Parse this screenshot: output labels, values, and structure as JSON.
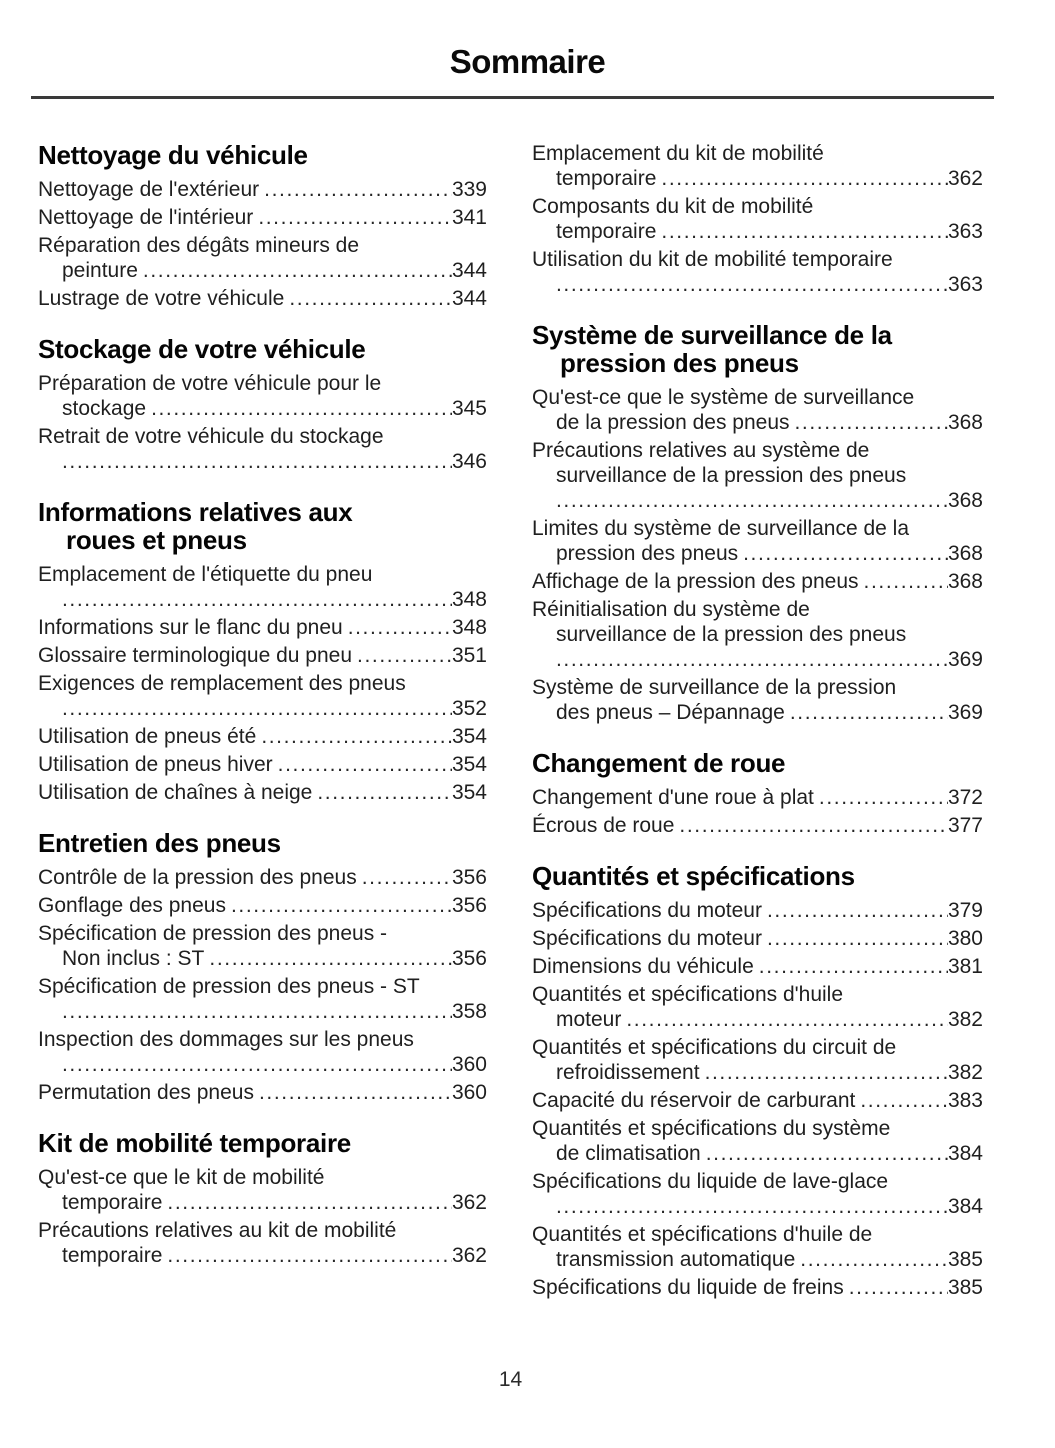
{
  "page": {
    "title": "Sommaire",
    "page_number": "14"
  },
  "toc": {
    "columns": [
      {
        "name": "left",
        "blocks": [
          {
            "heading_lines": [
              "Nettoyage du véhicule"
            ],
            "entries": [
              {
                "lines": [
                  "Nettoyage de l'extérieur"
                ],
                "page": "339"
              },
              {
                "lines": [
                  "Nettoyage de l'intérieur"
                ],
                "page": "341"
              },
              {
                "lines": [
                  "Réparation des dégâts mineurs de",
                  "peinture"
                ],
                "page": "344"
              },
              {
                "lines": [
                  "Lustrage de votre véhicule"
                ],
                "page": "344"
              }
            ]
          },
          {
            "heading_lines": [
              "Stockage de votre véhicule"
            ],
            "entries": [
              {
                "lines": [
                  "Préparation de votre véhicule pour le",
                  "stockage"
                ],
                "page": "345"
              },
              {
                "lines": [
                  "Retrait de votre véhicule du stockage",
                  ""
                ],
                "page": "346"
              }
            ]
          },
          {
            "heading_lines": [
              "Informations relatives aux",
              "roues et pneus"
            ],
            "entries": [
              {
                "lines": [
                  "Emplacement de l'étiquette du pneu",
                  ""
                ],
                "page": "348"
              },
              {
                "lines": [
                  "Informations sur le flanc du pneu"
                ],
                "page": "348"
              },
              {
                "lines": [
                  "Glossaire terminologique du pneu"
                ],
                "page": "351"
              },
              {
                "lines": [
                  "Exigences de remplacement des pneus",
                  ""
                ],
                "page": "352"
              },
              {
                "lines": [
                  "Utilisation de pneus été"
                ],
                "page": "354"
              },
              {
                "lines": [
                  "Utilisation de pneus hiver"
                ],
                "page": "354"
              },
              {
                "lines": [
                  "Utilisation de chaînes à neige"
                ],
                "page": "354"
              }
            ]
          },
          {
            "heading_lines": [
              "Entretien des pneus"
            ],
            "entries": [
              {
                "lines": [
                  "Contrôle de la pression des pneus"
                ],
                "page": "356"
              },
              {
                "lines": [
                  "Gonflage des pneus"
                ],
                "page": "356"
              },
              {
                "lines": [
                  "Spécification de pression des pneus -",
                  "Non inclus : ST"
                ],
                "page": "356"
              },
              {
                "lines": [
                  "Spécification de pression des pneus - ST",
                  ""
                ],
                "page": "358"
              },
              {
                "lines": [
                  "Inspection des dommages sur les pneus",
                  ""
                ],
                "page": "360"
              },
              {
                "lines": [
                  "Permutation des pneus"
                ],
                "page": "360"
              }
            ]
          },
          {
            "heading_lines": [
              "Kit de mobilité temporaire"
            ],
            "entries": [
              {
                "lines": [
                  "Qu'est-ce que le kit de mobilité",
                  "temporaire"
                ],
                "page": "362"
              },
              {
                "lines": [
                  "Précautions relatives au kit de mobilité",
                  "temporaire"
                ],
                "page": "362"
              }
            ]
          }
        ]
      },
      {
        "name": "right",
        "blocks": [
          {
            "heading_lines": [],
            "entries": [
              {
                "lines": [
                  "Emplacement du kit de mobilité",
                  "temporaire"
                ],
                "page": "362"
              },
              {
                "lines": [
                  "Composants du kit de mobilité",
                  "temporaire"
                ],
                "page": "363"
              },
              {
                "lines": [
                  "Utilisation du kit de mobilité temporaire",
                  ""
                ],
                "page": "363"
              }
            ]
          },
          {
            "heading_lines": [
              "Système de surveillance de la",
              "pression des pneus"
            ],
            "entries": [
              {
                "lines": [
                  "Qu'est-ce que le système de surveillance",
                  "de la pression des pneus"
                ],
                "page": "368"
              },
              {
                "lines": [
                  "Précautions relatives au système de",
                  "surveillance de la pression des pneus",
                  ""
                ],
                "page": "368"
              },
              {
                "lines": [
                  "Limites du système de surveillance de la",
                  "pression des pneus"
                ],
                "page": "368"
              },
              {
                "lines": [
                  "Affichage de la pression des pneus"
                ],
                "page": "368"
              },
              {
                "lines": [
                  "Réinitialisation du système de",
                  "surveillance de la pression des pneus",
                  ""
                ],
                "page": "369"
              },
              {
                "lines": [
                  "Système de surveillance de la pression",
                  "des pneus – Dépannage"
                ],
                "page": "369"
              }
            ]
          },
          {
            "heading_lines": [
              "Changement de roue"
            ],
            "entries": [
              {
                "lines": [
                  "Changement d'une roue à plat"
                ],
                "page": "372"
              },
              {
                "lines": [
                  "Écrous de roue"
                ],
                "page": "377"
              }
            ]
          },
          {
            "heading_lines": [
              "Quantités et spécifications"
            ],
            "entries": [
              {
                "lines": [
                  "Spécifications du moteur"
                ],
                "page": "379"
              },
              {
                "lines": [
                  "Spécifications du moteur"
                ],
                "page": "380"
              },
              {
                "lines": [
                  "Dimensions du véhicule"
                ],
                "page": "381"
              },
              {
                "lines": [
                  "Quantités et spécifications d'huile",
                  "moteur"
                ],
                "page": "382"
              },
              {
                "lines": [
                  "Quantités et spécifications du circuit de",
                  "refroidissement"
                ],
                "page": "382"
              },
              {
                "lines": [
                  "Capacité du réservoir de carburant"
                ],
                "page": "383"
              },
              {
                "lines": [
                  "Quantités et spécifications du système",
                  "de climatisation"
                ],
                "page": "384"
              },
              {
                "lines": [
                  "Spécifications du liquide de lave-glace",
                  ""
                ],
                "page": "384"
              },
              {
                "lines": [
                  "Quantités et spécifications d'huile de",
                  "transmission automatique"
                ],
                "page": "385"
              },
              {
                "lines": [
                  "Spécifications du liquide de freins"
                ],
                "page": "385"
              }
            ]
          }
        ]
      }
    ]
  }
}
